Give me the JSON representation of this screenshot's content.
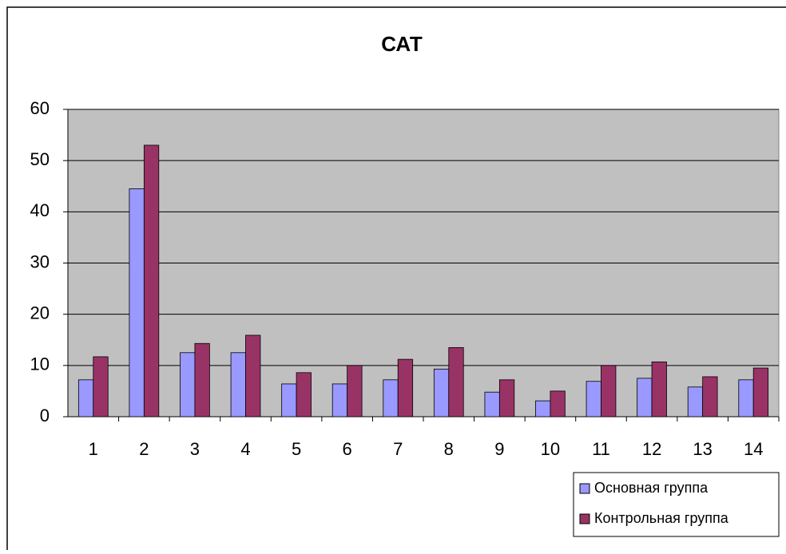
{
  "chart_data": {
    "type": "bar",
    "title": "САТ",
    "categories": [
      "1",
      "2",
      "3",
      "4",
      "5",
      "6",
      "7",
      "8",
      "9",
      "10",
      "11",
      "12",
      "13",
      "14"
    ],
    "series": [
      {
        "name": "Основная группа",
        "color": "#9999ff",
        "values": [
          7.2,
          44.5,
          12.5,
          12.5,
          6.4,
          6.4,
          7.2,
          9.3,
          4.8,
          3.1,
          6.9,
          7.5,
          5.8,
          7.2
        ]
      },
      {
        "name": "Контрольная группа",
        "color": "#993366",
        "values": [
          11.7,
          53,
          14.3,
          15.9,
          8.6,
          10,
          11.2,
          13.5,
          7.2,
          5,
          10,
          10.7,
          7.8,
          9.5
        ]
      }
    ],
    "ylim": [
      0,
      60
    ],
    "yticks": [
      0,
      10,
      20,
      30,
      40,
      50,
      60
    ],
    "grid": true,
    "legend": "bottom-right"
  }
}
